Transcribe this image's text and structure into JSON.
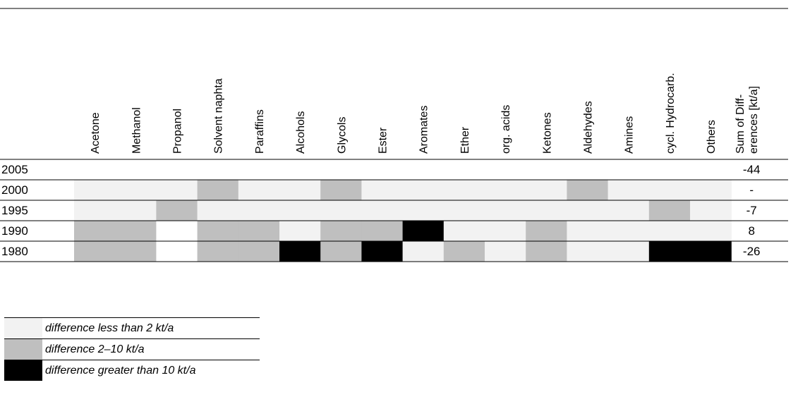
{
  "chart_data": {
    "type": "heatmap",
    "columns": [
      "Acetone",
      "Methanol",
      "Propanol",
      "Solvent naphta",
      "Paraffins",
      "Alcohols",
      "Glycols",
      "Ester",
      "Aromates",
      "Ether",
      "org. acids",
      "Ketones",
      "Aldehydes",
      "Amines",
      "cycl. Hydrocarb.",
      "Others"
    ],
    "sum_header": [
      "Sum of Diff-",
      "erences [kt/a]"
    ],
    "rows": [
      {
        "year": "2005",
        "sum": "-44",
        "levels": [
          null,
          null,
          null,
          null,
          null,
          null,
          null,
          null,
          null,
          null,
          null,
          null,
          null,
          null,
          null,
          null
        ]
      },
      {
        "year": "2000",
        "sum": "-",
        "levels": [
          "lt2",
          "lt2",
          "lt2",
          "2to10",
          "lt2",
          "lt2",
          "2to10",
          "lt2",
          "lt2",
          "lt2",
          "lt2",
          "lt2",
          "2to10",
          "lt2",
          "lt2",
          "lt2"
        ]
      },
      {
        "year": "1995",
        "sum": "-7",
        "levels": [
          "lt2",
          "lt2",
          "2to10",
          "lt2",
          "lt2",
          "lt2",
          "lt2",
          "lt2",
          "lt2",
          "lt2",
          "lt2",
          "lt2",
          "lt2",
          "lt2",
          "2to10",
          "lt2"
        ]
      },
      {
        "year": "1990",
        "sum": "8",
        "levels": [
          "2to10",
          "2to10",
          "none",
          "2to10",
          "2to10",
          "lt2",
          "2to10",
          "2to10",
          "gt10",
          "lt2",
          "lt2",
          "2to10",
          "lt2",
          "lt2",
          "lt2",
          "lt2"
        ]
      },
      {
        "year": "1980",
        "sum": "-26",
        "levels": [
          "2to10",
          "2to10",
          "none",
          "2to10",
          "2to10",
          "gt10",
          "2to10",
          "gt10",
          "lt2",
          "2to10",
          "lt2",
          "2to10",
          "lt2",
          "lt2",
          "gt10",
          "gt10"
        ]
      }
    ],
    "legend": [
      {
        "key": "lt2",
        "label": "difference less than 2 kt/a",
        "color": "#f2f2f2"
      },
      {
        "key": "2to10",
        "label": "difference 2–10 kt/a",
        "color": "#bfbfbf"
      },
      {
        "key": "gt10",
        "label": "difference greater than 10 kt/a",
        "color": "#000000"
      }
    ],
    "colors": {
      "none": "#ffffff"
    }
  }
}
